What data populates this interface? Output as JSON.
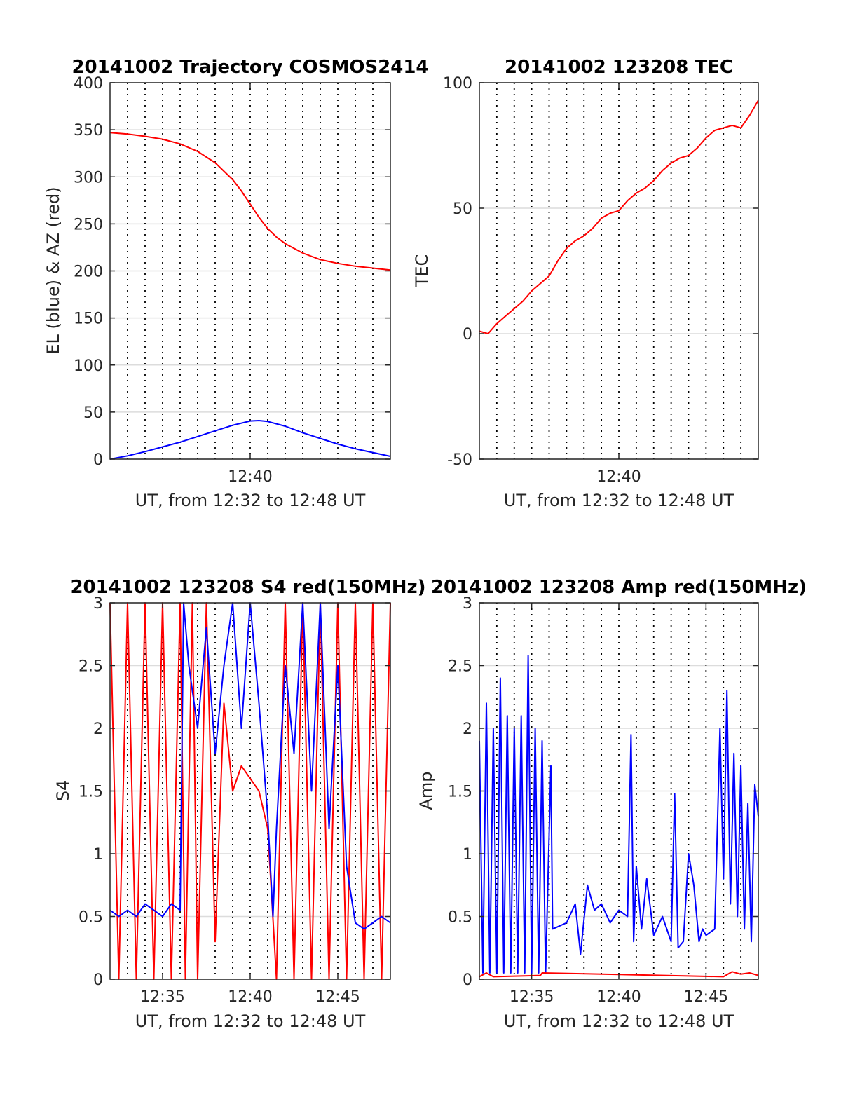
{
  "chart_data": [
    {
      "type": "line",
      "title": "20141002 Trajectory COSMOS2414",
      "xlabel": "UT, from 12:32 to 12:48 UT",
      "ylabel": "EL (blue) & AZ (red)",
      "xlim": [
        0,
        16
      ],
      "ylim": [
        0,
        400
      ],
      "x_ticks": [
        8
      ],
      "x_tick_labels": [
        "12:40"
      ],
      "y_ticks": [
        0,
        50,
        100,
        150,
        200,
        250,
        300,
        350,
        400
      ],
      "y_tick_labels": [
        "0",
        "50",
        "100",
        "150",
        "200",
        "250",
        "300",
        "350",
        "400"
      ],
      "vlines_minutes": [
        1,
        2,
        3,
        4,
        5,
        6,
        7,
        8,
        9,
        10,
        11,
        12,
        13,
        14,
        15
      ],
      "grid": true,
      "series": [
        {
          "color": "#0000ff",
          "x": [
            0,
            1,
            2,
            3,
            4,
            5,
            6,
            7,
            8,
            8.5,
            9,
            10,
            11,
            12,
            13,
            14,
            15,
            16
          ],
          "y": [
            0,
            3.5,
            8,
            13,
            18,
            24,
            30,
            36,
            40.5,
            41,
            40,
            35,
            28,
            22,
            16,
            11,
            7,
            3
          ]
        },
        {
          "color": "#ff0000",
          "x": [
            0,
            1,
            2,
            3,
            4,
            5,
            6,
            7,
            7.5,
            8,
            8.5,
            9,
            9.5,
            10,
            11,
            12,
            13,
            14,
            15,
            16
          ],
          "y": [
            347,
            345.5,
            343,
            340,
            335,
            327,
            315,
            297,
            285,
            271,
            257,
            245,
            236,
            229,
            219,
            212,
            208,
            205,
            203,
            201
          ]
        }
      ]
    },
    {
      "type": "line",
      "title": "20141002 123208 TEC",
      "xlabel": "UT, from 12:32 to 12:48 UT",
      "ylabel": "TEC",
      "xlim": [
        0,
        16
      ],
      "ylim": [
        -50,
        100
      ],
      "x_ticks": [
        8
      ],
      "x_tick_labels": [
        "12:40"
      ],
      "y_ticks": [
        -50,
        0,
        50,
        100
      ],
      "y_tick_labels": [
        "-50",
        "0",
        "50",
        "100"
      ],
      "vlines_minutes": [
        1,
        2,
        3,
        4,
        5,
        6,
        7,
        8,
        9,
        10,
        11,
        12,
        13,
        14,
        15
      ],
      "grid": true,
      "series": [
        {
          "color": "#ff0000",
          "x": [
            0,
            0.5,
            1,
            1.5,
            2,
            2.5,
            3,
            3.5,
            4,
            4.5,
            5,
            5.5,
            6,
            6.5,
            7,
            7.5,
            8,
            8.5,
            9,
            9.5,
            10,
            10.5,
            11,
            11.5,
            12,
            12.5,
            13,
            13.5,
            14,
            14.5,
            15,
            15.5,
            16
          ],
          "y": [
            1,
            0,
            4,
            7,
            10,
            13,
            17,
            20,
            23,
            29,
            34,
            37,
            39,
            42,
            46,
            48,
            49,
            53,
            56,
            58,
            61,
            65,
            68,
            70,
            71,
            74,
            78,
            81,
            82,
            83,
            82,
            87,
            93
          ]
        }
      ]
    },
    {
      "type": "line",
      "title": "20141002 123208 S4 red(150MHz)",
      "xlabel": "UT, from 12:32 to 12:48 UT",
      "ylabel": "S4",
      "xlim": [
        0,
        16
      ],
      "ylim": [
        0,
        3
      ],
      "x_ticks": [
        3,
        8,
        13
      ],
      "x_tick_labels": [
        "12:35",
        "12:40",
        "12:45"
      ],
      "y_ticks": [
        0,
        0.5,
        1,
        1.5,
        2,
        2.5,
        3
      ],
      "y_tick_labels": [
        "0",
        "0.5",
        "1",
        "1.5",
        "2",
        "2.5",
        "3"
      ],
      "vlines_minutes": [
        1,
        2,
        3,
        4,
        5,
        6,
        7,
        8,
        9,
        10,
        11,
        12,
        13,
        14,
        15
      ],
      "grid": true,
      "series": [
        {
          "color": "#ff0000",
          "x": [
            0,
            0.5,
            1,
            1.5,
            2,
            2.5,
            3,
            3.5,
            4,
            4.3,
            4.7,
            5,
            5.5,
            6,
            6.5,
            7,
            7.5,
            8,
            8.5,
            9,
            9.5,
            10,
            10.5,
            11,
            11.5,
            12,
            12.5,
            13,
            13.5,
            14,
            14.5,
            15,
            15.5,
            16
          ],
          "y": [
            3,
            0,
            3,
            0,
            3,
            0,
            3,
            0,
            3,
            0,
            3,
            0,
            3,
            0.3,
            2.2,
            1.5,
            1.7,
            1.6,
            1.5,
            1.2,
            0,
            3,
            0,
            3,
            0,
            3,
            0,
            3,
            0,
            3,
            0,
            3,
            0,
            3
          ]
        },
        {
          "color": "#0000ff",
          "x": [
            0,
            0.5,
            1,
            1.5,
            2,
            2.5,
            3,
            3.5,
            4,
            4.2,
            4.5,
            5,
            5.5,
            6,
            6.5,
            7,
            7.5,
            8,
            8.5,
            9,
            9.3,
            9.5,
            10,
            10.5,
            11,
            11.5,
            12,
            12.5,
            13,
            13.5,
            14,
            14.5,
            15,
            15.5,
            16
          ],
          "y": [
            0.55,
            0.5,
            0.55,
            0.5,
            0.6,
            0.55,
            0.5,
            0.6,
            0.55,
            3,
            2.5,
            2.0,
            2.8,
            1.8,
            2.5,
            3,
            2.0,
            3,
            2.2,
            1.3,
            0.5,
            1.2,
            2.5,
            1.8,
            3,
            1.5,
            3,
            1.2,
            2.5,
            0.9,
            0.45,
            0.4,
            0.45,
            0.5,
            0.45
          ]
        }
      ]
    },
    {
      "type": "line",
      "title": "20141002 123208 Amp red(150MHz)",
      "xlabel": "UT, from 12:32 to 12:48 UT",
      "ylabel": "Amp",
      "xlim": [
        0,
        16
      ],
      "ylim": [
        0,
        3
      ],
      "x_ticks": [
        3,
        8,
        13
      ],
      "x_tick_labels": [
        "12:35",
        "12:40",
        "12:45"
      ],
      "y_ticks": [
        0,
        0.5,
        1,
        1.5,
        2,
        2.5,
        3
      ],
      "y_tick_labels": [
        "0",
        "0.5",
        "1",
        "1.5",
        "2",
        "2.5",
        "3"
      ],
      "vlines_minutes": [
        1,
        2,
        3,
        4,
        5,
        6,
        7,
        8,
        9,
        10,
        11,
        12,
        13,
        14,
        15
      ],
      "grid": true,
      "series": [
        {
          "color": "#0000ff",
          "x": [
            0,
            0.2,
            0.4,
            0.6,
            0.8,
            1,
            1.2,
            1.4,
            1.6,
            1.8,
            2,
            2.2,
            2.4,
            2.6,
            2.8,
            3,
            3.2,
            3.4,
            3.6,
            3.8,
            4.1,
            4.2,
            5,
            5.5,
            5.8,
            6.2,
            6.6,
            7,
            7.5,
            8,
            8.5,
            8.7,
            8.85,
            9,
            9.3,
            9.6,
            10,
            10.5,
            11,
            11.2,
            11.4,
            11.7,
            12,
            12.3,
            12.6,
            12.8,
            13,
            13.5,
            13.8,
            14,
            14.2,
            14.4,
            14.6,
            14.8,
            15,
            15.2,
            15.4,
            15.6,
            15.8,
            16
          ],
          "y": [
            1.9,
            0.05,
            2.2,
            0.05,
            2.0,
            0.05,
            2.4,
            0.05,
            2.1,
            0.05,
            2.0,
            0.05,
            2.1,
            0.05,
            2.58,
            0.05,
            2.0,
            0.05,
            1.9,
            0.05,
            1.7,
            0.4,
            0.45,
            0.6,
            0.2,
            0.75,
            0.55,
            0.6,
            0.45,
            0.55,
            0.5,
            1.95,
            0.3,
            0.9,
            0.4,
            0.8,
            0.35,
            0.5,
            0.3,
            1.48,
            0.25,
            0.3,
            1.0,
            0.75,
            0.3,
            0.4,
            0.35,
            0.4,
            2.0,
            0.8,
            2.3,
            0.6,
            1.8,
            0.5,
            1.7,
            0.4,
            1.4,
            0.3,
            1.55,
            1.3
          ]
        },
        {
          "color": "#ff0000",
          "x": [
            0,
            0.4,
            0.8,
            3.5,
            3.6,
            14,
            14.5,
            15,
            15.5,
            16
          ],
          "y": [
            0.02,
            0.05,
            0.02,
            0.03,
            0.05,
            0.02,
            0.06,
            0.04,
            0.05,
            0.03
          ]
        }
      ]
    }
  ]
}
